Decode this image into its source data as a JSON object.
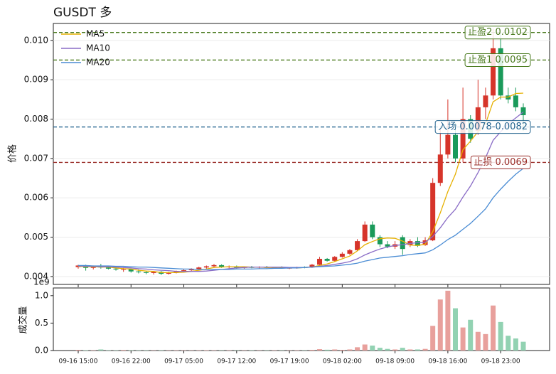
{
  "chart_data": {
    "type": "candlestick",
    "title": "GUSDT  多",
    "ylabel": "价格",
    "legend": "upper left",
    "grid": true,
    "up_color": "#d6342a",
    "down_color": "#1a9a5a",
    "categories": [
      "09-16 15:00",
      null,
      null,
      null,
      null,
      null,
      null,
      "09-16 22:00",
      null,
      null,
      null,
      null,
      null,
      null,
      "09-17 05:00",
      null,
      null,
      null,
      null,
      null,
      null,
      "09-17 12:00",
      null,
      null,
      null,
      null,
      null,
      null,
      "09-17 19:00",
      null,
      null,
      null,
      null,
      null,
      null,
      "09-18 02:00",
      null,
      null,
      null,
      null,
      null,
      null,
      "09-18 09:00",
      null,
      null,
      null,
      null,
      null,
      null,
      "09-18 16:00",
      null,
      null,
      null,
      null,
      null,
      null,
      "09-18 23:00",
      null,
      null,
      null
    ],
    "open": [
      0.00424,
      0.00428,
      0.00422,
      0.00426,
      0.00423,
      0.0042,
      0.00418,
      0.00419,
      0.00413,
      0.00411,
      0.00409,
      0.00412,
      0.00407,
      0.0041,
      0.00413,
      0.00416,
      0.00419,
      0.00423,
      0.00426,
      0.00429,
      0.00424,
      0.00426,
      0.00422,
      0.00424,
      0.00423,
      0.00425,
      0.00422,
      0.00423,
      0.00421,
      0.00422,
      0.00424,
      0.00423,
      0.0043,
      0.00445,
      0.0044,
      0.0045,
      0.00458,
      0.00467,
      0.0049,
      0.00532,
      0.005,
      0.00482,
      0.00476,
      0.005,
      0.0048,
      0.0049,
      0.0048,
      0.00492,
      0.00638,
      0.0071,
      0.0076,
      0.007,
      0.008,
      0.0077,
      0.0083,
      0.0086,
      0.0098,
      0.0086,
      0.0086,
      0.0083
    ],
    "high": [
      0.0043,
      0.0043,
      0.00428,
      0.00432,
      0.00427,
      0.00425,
      0.00422,
      0.0042,
      0.00418,
      0.00415,
      0.00413,
      0.00414,
      0.00412,
      0.00415,
      0.00418,
      0.00421,
      0.00425,
      0.00428,
      0.00432,
      0.00431,
      0.00428,
      0.00428,
      0.00426,
      0.00427,
      0.00426,
      0.00427,
      0.00425,
      0.00426,
      0.00424,
      0.00425,
      0.00426,
      0.00432,
      0.0045,
      0.00447,
      0.00452,
      0.00462,
      0.0047,
      0.00495,
      0.0054,
      0.0054,
      0.00505,
      0.0049,
      0.0049,
      0.00505,
      0.00495,
      0.005,
      0.005,
      0.0065,
      0.00775,
      0.0085,
      0.0079,
      0.0088,
      0.0081,
      0.009,
      0.0088,
      0.0103,
      0.0102,
      0.0088,
      0.0088,
      0.0084
    ],
    "low": [
      0.0042,
      0.00415,
      0.00418,
      0.0042,
      0.00418,
      0.00415,
      0.00412,
      0.0041,
      0.00408,
      0.00406,
      0.00405,
      0.00404,
      0.00405,
      0.00408,
      0.00411,
      0.00414,
      0.00417,
      0.0042,
      0.00424,
      0.00422,
      0.00421,
      0.0042,
      0.0042,
      0.00421,
      0.0042,
      0.00421,
      0.0042,
      0.0042,
      0.00419,
      0.0042,
      0.00421,
      0.00422,
      0.00428,
      0.00438,
      0.00438,
      0.00448,
      0.00455,
      0.00465,
      0.00488,
      0.00495,
      0.00475,
      0.00472,
      0.0047,
      0.00455,
      0.00475,
      0.00475,
      0.00478,
      0.0049,
      0.0063,
      0.007,
      0.0069,
      0.0069,
      0.0074,
      0.0076,
      0.008,
      0.0085,
      0.0085,
      0.0084,
      0.0082,
      0.0077
    ],
    "close": [
      0.00428,
      0.00422,
      0.00426,
      0.00423,
      0.0042,
      0.00418,
      0.00419,
      0.00413,
      0.00411,
      0.00409,
      0.00412,
      0.00407,
      0.0041,
      0.00413,
      0.00416,
      0.00419,
      0.00423,
      0.00426,
      0.00429,
      0.00424,
      0.00426,
      0.00422,
      0.00424,
      0.00423,
      0.00425,
      0.00422,
      0.00423,
      0.00421,
      0.00422,
      0.00424,
      0.00423,
      0.0043,
      0.00445,
      0.0044,
      0.0045,
      0.00458,
      0.00467,
      0.0049,
      0.00532,
      0.005,
      0.00482,
      0.00476,
      0.00482,
      0.0047,
      0.0049,
      0.00478,
      0.00492,
      0.00638,
      0.0071,
      0.0076,
      0.007,
      0.008,
      0.0075,
      0.0083,
      0.0086,
      0.0098,
      0.0086,
      0.0085,
      0.0083,
      0.0081
    ],
    "series": [
      {
        "name": "MA5",
        "color": "#e6b000",
        "values": [
          0.00426,
          0.00425,
          0.00425,
          0.00424,
          0.00424,
          0.00422,
          0.0042,
          0.00419,
          0.00416,
          0.00414,
          0.00413,
          0.0041,
          0.0041,
          0.0041,
          0.00411,
          0.00413,
          0.00416,
          0.00419,
          0.00423,
          0.00424,
          0.00425,
          0.00425,
          0.00425,
          0.00424,
          0.00424,
          0.00423,
          0.00423,
          0.00423,
          0.00422,
          0.00422,
          0.00423,
          0.00424,
          0.00428,
          0.00432,
          0.00438,
          0.00445,
          0.00452,
          0.00465,
          0.00481,
          0.00489,
          0.00496,
          0.00498,
          0.00497,
          0.0049,
          0.0048,
          0.00479,
          0.00482,
          0.00514,
          0.00562,
          0.00616,
          0.0066,
          0.00722,
          0.00744,
          0.00768,
          0.00788,
          0.00844,
          0.00856,
          0.00856,
          0.00865,
          0.00866
        ]
      },
      {
        "name": "MA10",
        "color": "#8a6cc6",
        "values": [
          0.00427,
          0.00426,
          0.00426,
          0.00425,
          0.00425,
          0.00424,
          0.00423,
          0.00422,
          0.0042,
          0.00419,
          0.00417,
          0.00416,
          0.00415,
          0.00413,
          0.00413,
          0.00413,
          0.00413,
          0.00414,
          0.00416,
          0.00418,
          0.0042,
          0.00422,
          0.00423,
          0.00424,
          0.00424,
          0.00424,
          0.00424,
          0.00424,
          0.00423,
          0.00423,
          0.00423,
          0.00424,
          0.00426,
          0.00428,
          0.00431,
          0.00434,
          0.00438,
          0.00445,
          0.00455,
          0.00463,
          0.0047,
          0.00475,
          0.00479,
          0.00481,
          0.00484,
          0.00486,
          0.00487,
          0.00502,
          0.00524,
          0.0055,
          0.00571,
          0.00602,
          0.0063,
          0.00664,
          0.00702,
          0.00746,
          0.00768,
          0.00788,
          0.00803,
          0.00818
        ]
      },
      {
        "name": "MA20",
        "color": "#4a8cd4",
        "values": [
          0.00428,
          0.00428,
          0.00427,
          0.00427,
          0.00427,
          0.00426,
          0.00426,
          0.00425,
          0.00424,
          0.00424,
          0.00423,
          0.00422,
          0.00421,
          0.0042,
          0.00419,
          0.00419,
          0.00418,
          0.00418,
          0.00418,
          0.00418,
          0.00418,
          0.00419,
          0.00419,
          0.00419,
          0.0042,
          0.0042,
          0.00421,
          0.00421,
          0.00422,
          0.00422,
          0.00423,
          0.00424,
          0.00425,
          0.00426,
          0.00427,
          0.00429,
          0.00431,
          0.00434,
          0.00439,
          0.00443,
          0.00447,
          0.00449,
          0.00451,
          0.00453,
          0.00456,
          0.00458,
          0.0046,
          0.00468,
          0.0048,
          0.00494,
          0.00505,
          0.0052,
          0.00535,
          0.00553,
          0.00572,
          0.006,
          0.00622,
          0.00642,
          0.0066,
          0.00675
        ]
      }
    ],
    "ylim": [
      0.0038,
      0.01043
    ],
    "yticks": [
      0.004,
      0.005,
      0.006,
      0.007,
      0.008,
      0.009,
      {
        "value": 0.01,
        "label": "0.010"
      }
    ],
    "levels": [
      {
        "label": "止盈2 0.0102",
        "value": 0.0102,
        "color": "#4a7a1e"
      },
      {
        "label": "止盈1 0.0095",
        "value": 0.0095,
        "color": "#4a7a1e"
      },
      {
        "label": "入场 0.0078-0.0082",
        "value": 0.0078,
        "color": "#24648f"
      },
      {
        "label": "止损 0.0069",
        "value": 0.0069,
        "color": "#9a2f2a"
      }
    ],
    "volume": {
      "ylabel": "成交量",
      "offset_label": "1e9",
      "up_color": "#e8a09c",
      "down_color": "#92d2b2",
      "ylim": [
        0,
        1.14
      ],
      "yticks": [
        {
          "value": 0,
          "label": "0.0"
        },
        0.5,
        {
          "value": 1,
          "label": "1.0"
        }
      ],
      "values": [
        0.012,
        0.006,
        0.005,
        0.02,
        0.005,
        0.005,
        0.01,
        0.006,
        0.005,
        0.005,
        0.004,
        0.005,
        0.004,
        0.005,
        0.005,
        0.004,
        0.005,
        0.006,
        0.005,
        0.004,
        0.005,
        0.004,
        0.004,
        0.005,
        0.004,
        0.004,
        0.005,
        0.004,
        0.004,
        0.005,
        0.004,
        0.012,
        0.025,
        0.015,
        0.02,
        0.012,
        0.02,
        0.06,
        0.11,
        0.09,
        0.05,
        0.03,
        0.02,
        0.05,
        0.02,
        0.02,
        0.03,
        0.45,
        0.93,
        1.09,
        0.77,
        0.42,
        0.56,
        0.34,
        0.3,
        0.82,
        0.52,
        0.27,
        0.22,
        0.16
      ]
    }
  }
}
